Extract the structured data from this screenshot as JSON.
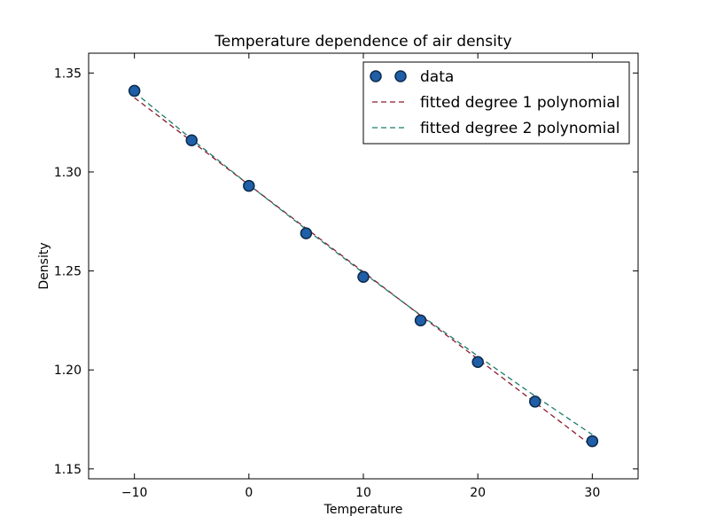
{
  "chart_data": {
    "type": "line",
    "title": "Temperature dependence of air density",
    "xlabel": "Temperature",
    "ylabel": "Density",
    "xlim": [
      -14,
      34
    ],
    "ylim": [
      1.145,
      1.36
    ],
    "xticks": [
      -10,
      0,
      10,
      20,
      30
    ],
    "xtick_labels": [
      "−10",
      "0",
      "10",
      "20",
      "30"
    ],
    "yticks": [
      1.15,
      1.2,
      1.25,
      1.3,
      1.35
    ],
    "ytick_labels": [
      "1.15",
      "1.20",
      "1.25",
      "1.30",
      "1.35"
    ],
    "grid": false,
    "legend_position": "top-right",
    "series": [
      {
        "name": "data",
        "kind": "markers",
        "color": "#1f5fa8",
        "edge_color": "#0d2a4a",
        "x": [
          -10,
          -5,
          0,
          5,
          10,
          15,
          20,
          25,
          30
        ],
        "y": [
          1.341,
          1.316,
          1.293,
          1.269,
          1.247,
          1.225,
          1.204,
          1.184,
          1.164
        ]
      },
      {
        "name": "fitted degree 1 polynomial",
        "kind": "dashed-line",
        "color": "#8b1a2b",
        "x": [
          -10,
          30
        ],
        "y": [
          1.3375,
          1.1615
        ]
      },
      {
        "name": "fitted degree 2 polynomial",
        "kind": "dashed-line",
        "color": "#1a7a6a",
        "x": [
          -10,
          -5,
          0,
          5,
          10,
          15,
          20,
          25,
          30
        ],
        "y": [
          1.3403,
          1.3166,
          1.2935,
          1.271,
          1.249,
          1.2277,
          1.207,
          1.1868,
          1.1673
        ]
      }
    ]
  }
}
